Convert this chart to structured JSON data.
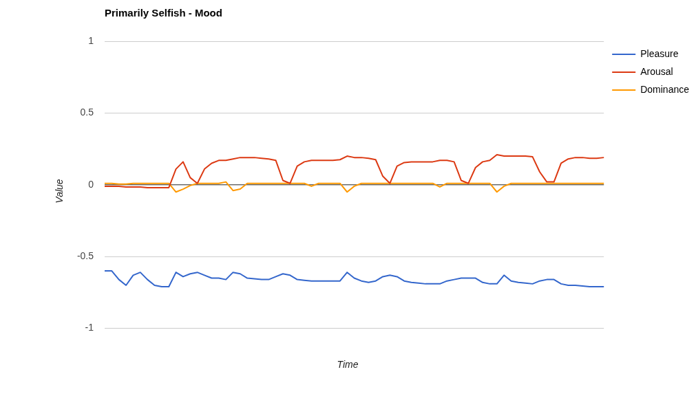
{
  "chart_data": {
    "type": "line",
    "title": "Primarily Selfish - Mood",
    "xlabel": "Time",
    "ylabel": "Value",
    "categories": [
      null,
      null,
      null,
      null,
      null,
      null,
      null,
      null,
      null,
      null,
      null,
      null,
      null,
      null,
      null,
      null,
      null,
      null,
      null,
      null,
      null,
      null,
      null,
      null,
      null,
      null,
      null,
      null,
      null,
      null,
      null,
      null,
      null,
      null,
      null,
      null,
      null,
      null,
      null,
      null,
      null,
      null,
      null,
      null,
      null,
      null,
      null,
      null,
      null,
      null,
      null,
      null,
      null,
      null,
      null,
      null,
      null,
      null,
      null,
      null,
      null,
      null,
      null,
      null,
      null,
      null,
      null,
      null,
      null,
      null,
      null
    ],
    "series": [
      {
        "name": "Pleasure",
        "color": "#3366cc",
        "values": [
          -0.6,
          -0.6,
          -0.66,
          -0.7,
          -0.63,
          -0.61,
          -0.66,
          -0.7,
          -0.71,
          -0.71,
          -0.61,
          -0.64,
          -0.62,
          -0.61,
          -0.63,
          -0.65,
          -0.65,
          -0.66,
          -0.61,
          -0.62,
          -0.65,
          -0.655,
          -0.66,
          -0.66,
          -0.64,
          -0.62,
          -0.63,
          -0.66,
          -0.665,
          -0.67,
          -0.67,
          -0.67,
          -0.67,
          -0.67,
          -0.61,
          -0.65,
          -0.67,
          -0.68,
          -0.67,
          -0.64,
          -0.63,
          -0.64,
          -0.67,
          -0.68,
          -0.685,
          -0.69,
          -0.69,
          -0.69,
          -0.67,
          -0.66,
          -0.65,
          -0.65,
          -0.65,
          -0.68,
          -0.69,
          -0.69,
          -0.63,
          -0.67,
          -0.68,
          -0.685,
          -0.69,
          -0.67,
          -0.66,
          -0.66,
          -0.69,
          -0.7,
          -0.7,
          -0.705,
          -0.71,
          -0.71,
          -0.71
        ]
      },
      {
        "name": "Arousal",
        "color": "#dc3912",
        "values": [
          -0.01,
          -0.01,
          -0.01,
          -0.015,
          -0.015,
          -0.015,
          -0.02,
          -0.02,
          -0.02,
          -0.02,
          0.11,
          0.16,
          0.05,
          0.01,
          0.11,
          0.15,
          0.17,
          0.17,
          0.18,
          0.19,
          0.19,
          0.19,
          0.185,
          0.18,
          0.17,
          0.03,
          0.01,
          0.13,
          0.16,
          0.17,
          0.17,
          0.17,
          0.17,
          0.175,
          0.2,
          0.19,
          0.19,
          0.185,
          0.175,
          0.06,
          0.01,
          0.13,
          0.155,
          0.16,
          0.16,
          0.16,
          0.16,
          0.17,
          0.17,
          0.16,
          0.03,
          0.01,
          0.12,
          0.16,
          0.17,
          0.21,
          0.2,
          0.2,
          0.2,
          0.2,
          0.195,
          0.09,
          0.02,
          0.02,
          0.15,
          0.18,
          0.19,
          0.19,
          0.185,
          0.185,
          0.19
        ]
      },
      {
        "name": "Dominance",
        "color": "#ff9900",
        "values": [
          0.01,
          0.01,
          0.005,
          0.005,
          0.01,
          0.01,
          0.01,
          0.01,
          0.01,
          0.01,
          -0.05,
          -0.03,
          -0.005,
          0.01,
          0.01,
          0.01,
          0.01,
          0.02,
          -0.04,
          -0.03,
          0.01,
          0.01,
          0.01,
          0.01,
          0.01,
          0.01,
          0.01,
          0.01,
          0.01,
          -0.01,
          0.01,
          0.01,
          0.01,
          0.01,
          -0.05,
          -0.01,
          0.01,
          0.01,
          0.01,
          0.01,
          0.01,
          0.01,
          0.01,
          0.01,
          0.01,
          0.01,
          0.01,
          -0.015,
          0.01,
          0.01,
          0.01,
          0.01,
          0.01,
          0.01,
          0.01,
          -0.05,
          -0.01,
          0.01,
          0.01,
          0.01,
          0.01,
          0.01,
          0.01,
          0.01,
          0.01,
          0.01,
          0.01,
          0.01,
          0.01,
          0.01,
          0.01
        ]
      }
    ],
    "ylim": [
      -1,
      1
    ],
    "yticks": [
      -1,
      -0.5,
      0,
      0.5,
      1
    ],
    "ref_lines": [
      {
        "axis": "y",
        "value": 0,
        "color": "#333333"
      }
    ],
    "grid": "y",
    "legend": "top right",
    "marker": "none",
    "line_style": "solid"
  }
}
